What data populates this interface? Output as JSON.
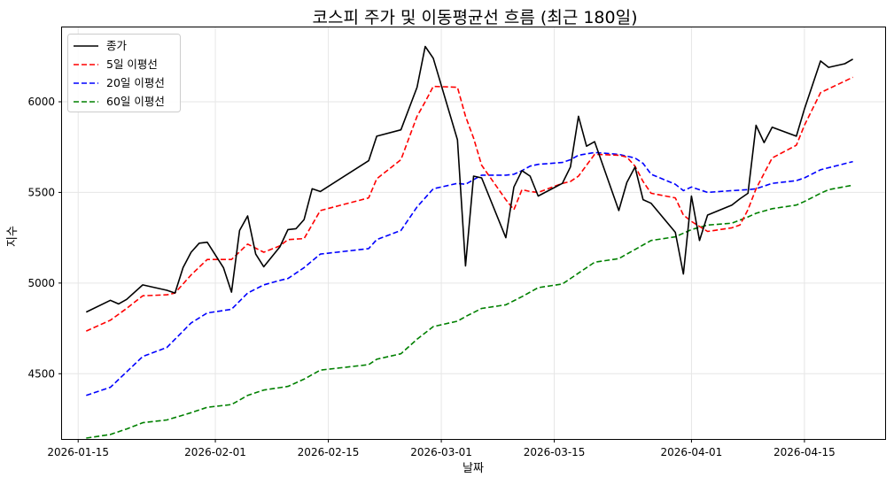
{
  "chart_data": {
    "type": "line",
    "title": "코스피 주가 및 이동평균선 흐름 (최근 180일)",
    "xlabel": "날짜",
    "ylabel": "지수",
    "grid": true,
    "legend_position": "top-left",
    "x_ticks": [
      "2026-01-15",
      "2026-02-01",
      "2026-02-15",
      "2026-03-01",
      "2026-03-15",
      "2026-04-01",
      "2026-04-15"
    ],
    "y_ticks": [
      4500,
      5000,
      5500,
      6000
    ],
    "xlim": [
      "2026-01-13",
      "2026-04-25"
    ],
    "ylim": [
      4140,
      6410
    ],
    "series": [
      {
        "name": "종가",
        "color": "#000000",
        "style": "solid",
        "points": [
          [
            "2026-01-16",
            4840
          ],
          [
            "2026-01-19",
            4905
          ],
          [
            "2026-01-20",
            4885
          ],
          [
            "2026-01-21",
            4910
          ],
          [
            "2026-01-23",
            4990
          ],
          [
            "2026-01-26",
            4960
          ],
          [
            "2026-01-27",
            4945
          ],
          [
            "2026-01-28",
            5085
          ],
          [
            "2026-01-29",
            5170
          ],
          [
            "2026-01-30",
            5220
          ],
          [
            "2026-01-31",
            5225
          ],
          [
            "2026-02-02",
            5085
          ],
          [
            "2026-02-03",
            4950
          ],
          [
            "2026-02-04",
            5290
          ],
          [
            "2026-02-05",
            5370
          ],
          [
            "2026-02-06",
            5160
          ],
          [
            "2026-02-07",
            5090
          ],
          [
            "2026-02-09",
            5200
          ],
          [
            "2026-02-10",
            5295
          ],
          [
            "2026-02-11",
            5300
          ],
          [
            "2026-02-12",
            5350
          ],
          [
            "2026-02-13",
            5520
          ],
          [
            "2026-02-14",
            5505
          ],
          [
            "2026-02-20",
            5675
          ],
          [
            "2026-02-21",
            5810
          ],
          [
            "2026-02-24",
            5845
          ],
          [
            "2026-02-26",
            6080
          ],
          [
            "2026-02-27",
            6305
          ],
          [
            "2026-02-28",
            6240
          ],
          [
            "2026-03-03",
            5790
          ],
          [
            "2026-03-04",
            5095
          ],
          [
            "2026-03-05",
            5590
          ],
          [
            "2026-03-06",
            5580
          ],
          [
            "2026-03-09",
            5250
          ],
          [
            "2026-03-10",
            5530
          ],
          [
            "2026-03-11",
            5620
          ],
          [
            "2026-03-12",
            5590
          ],
          [
            "2026-03-13",
            5480
          ],
          [
            "2026-03-16",
            5550
          ],
          [
            "2026-03-17",
            5640
          ],
          [
            "2026-03-18",
            5920
          ],
          [
            "2026-03-19",
            5755
          ],
          [
            "2026-03-20",
            5780
          ],
          [
            "2026-03-23",
            5400
          ],
          [
            "2026-03-24",
            5555
          ],
          [
            "2026-03-25",
            5640
          ],
          [
            "2026-03-26",
            5460
          ],
          [
            "2026-03-27",
            5440
          ],
          [
            "2026-03-30",
            5280
          ],
          [
            "2026-03-31",
            5050
          ],
          [
            "2026-04-01",
            5480
          ],
          [
            "2026-04-02",
            5235
          ],
          [
            "2026-04-03",
            5375
          ],
          [
            "2026-04-06",
            5430
          ],
          [
            "2026-04-07",
            5465
          ],
          [
            "2026-04-08",
            5495
          ],
          [
            "2026-04-09",
            5870
          ],
          [
            "2026-04-10",
            5775
          ],
          [
            "2026-04-11",
            5860
          ],
          [
            "2026-04-14",
            5810
          ],
          [
            "2026-04-15",
            5960
          ],
          [
            "2026-04-17",
            6225
          ],
          [
            "2026-04-18",
            6190
          ],
          [
            "2026-04-20",
            6210
          ],
          [
            "2026-04-21",
            6235
          ]
        ]
      },
      {
        "name": "5일 이평선",
        "color": "#ff0000",
        "style": "dashed",
        "points": [
          [
            "2026-01-16",
            4735
          ],
          [
            "2026-01-19",
            4795
          ],
          [
            "2026-01-21",
            4860
          ],
          [
            "2026-01-23",
            4930
          ],
          [
            "2026-01-26",
            4935
          ],
          [
            "2026-01-27",
            4945
          ],
          [
            "2026-01-29",
            5045
          ],
          [
            "2026-01-31",
            5130
          ],
          [
            "2026-02-03",
            5130
          ],
          [
            "2026-02-05",
            5215
          ],
          [
            "2026-02-07",
            5170
          ],
          [
            "2026-02-09",
            5205
          ],
          [
            "2026-02-10",
            5240
          ],
          [
            "2026-02-12",
            5245
          ],
          [
            "2026-02-14",
            5400
          ],
          [
            "2026-02-20",
            5470
          ],
          [
            "2026-02-21",
            5575
          ],
          [
            "2026-02-24",
            5680
          ],
          [
            "2026-02-26",
            5920
          ],
          [
            "2026-02-27",
            6000
          ],
          [
            "2026-02-28",
            6085
          ],
          [
            "2026-03-03",
            6080
          ],
          [
            "2026-03-04",
            5920
          ],
          [
            "2026-03-05",
            5800
          ],
          [
            "2026-03-06",
            5650
          ],
          [
            "2026-03-09",
            5460
          ],
          [
            "2026-03-10",
            5405
          ],
          [
            "2026-03-11",
            5515
          ],
          [
            "2026-03-12",
            5505
          ],
          [
            "2026-03-13",
            5500
          ],
          [
            "2026-03-16",
            5550
          ],
          [
            "2026-03-17",
            5560
          ],
          [
            "2026-03-18",
            5590
          ],
          [
            "2026-03-20",
            5710
          ],
          [
            "2026-03-23",
            5705
          ],
          [
            "2026-03-24",
            5695
          ],
          [
            "2026-03-25",
            5645
          ],
          [
            "2026-03-26",
            5560
          ],
          [
            "2026-03-27",
            5495
          ],
          [
            "2026-03-30",
            5470
          ],
          [
            "2026-03-31",
            5375
          ],
          [
            "2026-04-01",
            5340
          ],
          [
            "2026-04-03",
            5285
          ],
          [
            "2026-04-06",
            5305
          ],
          [
            "2026-04-07",
            5320
          ],
          [
            "2026-04-08",
            5405
          ],
          [
            "2026-04-09",
            5520
          ],
          [
            "2026-04-11",
            5690
          ],
          [
            "2026-04-14",
            5760
          ],
          [
            "2026-04-15",
            5870
          ],
          [
            "2026-04-17",
            6050
          ],
          [
            "2026-04-21",
            6135
          ]
        ]
      },
      {
        "name": "20일 이평선",
        "color": "#0000ff",
        "style": "dashed",
        "points": [
          [
            "2026-01-16",
            4380
          ],
          [
            "2026-01-19",
            4425
          ],
          [
            "2026-01-21",
            4510
          ],
          [
            "2026-01-23",
            4595
          ],
          [
            "2026-01-26",
            4645
          ],
          [
            "2026-01-27",
            4690
          ],
          [
            "2026-01-29",
            4780
          ],
          [
            "2026-01-31",
            4835
          ],
          [
            "2026-02-03",
            4855
          ],
          [
            "2026-02-05",
            4945
          ],
          [
            "2026-02-07",
            4990
          ],
          [
            "2026-02-09",
            5015
          ],
          [
            "2026-02-10",
            5025
          ],
          [
            "2026-02-12",
            5085
          ],
          [
            "2026-02-14",
            5160
          ],
          [
            "2026-02-20",
            5190
          ],
          [
            "2026-02-21",
            5240
          ],
          [
            "2026-02-24",
            5290
          ],
          [
            "2026-02-26",
            5420
          ],
          [
            "2026-02-28",
            5520
          ],
          [
            "2026-03-03",
            5550
          ],
          [
            "2026-03-04",
            5545
          ],
          [
            "2026-03-06",
            5595
          ],
          [
            "2026-03-09",
            5595
          ],
          [
            "2026-03-10",
            5600
          ],
          [
            "2026-03-11",
            5620
          ],
          [
            "2026-03-12",
            5645
          ],
          [
            "2026-03-13",
            5655
          ],
          [
            "2026-03-16",
            5665
          ],
          [
            "2026-03-17",
            5680
          ],
          [
            "2026-03-18",
            5705
          ],
          [
            "2026-03-20",
            5720
          ],
          [
            "2026-03-23",
            5710
          ],
          [
            "2026-03-25",
            5690
          ],
          [
            "2026-03-26",
            5660
          ],
          [
            "2026-03-27",
            5600
          ],
          [
            "2026-03-30",
            5545
          ],
          [
            "2026-03-31",
            5510
          ],
          [
            "2026-04-01",
            5530
          ],
          [
            "2026-04-03",
            5500
          ],
          [
            "2026-04-06",
            5510
          ],
          [
            "2026-04-08",
            5515
          ],
          [
            "2026-04-09",
            5520
          ],
          [
            "2026-04-11",
            5550
          ],
          [
            "2026-04-14",
            5565
          ],
          [
            "2026-04-15",
            5580
          ],
          [
            "2026-04-17",
            5625
          ],
          [
            "2026-04-21",
            5670
          ]
        ]
      },
      {
        "name": "60일 이평선",
        "color": "#008000",
        "style": "dashed",
        "points": [
          [
            "2026-01-16",
            4145
          ],
          [
            "2026-01-19",
            4165
          ],
          [
            "2026-01-21",
            4195
          ],
          [
            "2026-01-23",
            4230
          ],
          [
            "2026-01-26",
            4245
          ],
          [
            "2026-01-29",
            4285
          ],
          [
            "2026-01-31",
            4315
          ],
          [
            "2026-02-03",
            4330
          ],
          [
            "2026-02-05",
            4380
          ],
          [
            "2026-02-07",
            4410
          ],
          [
            "2026-02-10",
            4430
          ],
          [
            "2026-02-12",
            4470
          ],
          [
            "2026-02-14",
            4520
          ],
          [
            "2026-02-20",
            4550
          ],
          [
            "2026-02-21",
            4580
          ],
          [
            "2026-02-24",
            4610
          ],
          [
            "2026-02-26",
            4690
          ],
          [
            "2026-02-28",
            4760
          ],
          [
            "2026-03-03",
            4790
          ],
          [
            "2026-03-04",
            4815
          ],
          [
            "2026-03-06",
            4860
          ],
          [
            "2026-03-09",
            4880
          ],
          [
            "2026-03-11",
            4925
          ],
          [
            "2026-03-13",
            4975
          ],
          [
            "2026-03-16",
            4995
          ],
          [
            "2026-03-18",
            5055
          ],
          [
            "2026-03-20",
            5115
          ],
          [
            "2026-03-23",
            5135
          ],
          [
            "2026-03-25",
            5185
          ],
          [
            "2026-03-27",
            5235
          ],
          [
            "2026-03-30",
            5255
          ],
          [
            "2026-04-01",
            5295
          ],
          [
            "2026-04-03",
            5320
          ],
          [
            "2026-04-06",
            5330
          ],
          [
            "2026-04-08",
            5365
          ],
          [
            "2026-04-09",
            5385
          ],
          [
            "2026-04-11",
            5410
          ],
          [
            "2026-04-14",
            5430
          ],
          [
            "2026-04-15",
            5450
          ],
          [
            "2026-04-17",
            5495
          ],
          [
            "2026-04-18",
            5515
          ],
          [
            "2026-04-21",
            5540
          ]
        ]
      }
    ]
  }
}
